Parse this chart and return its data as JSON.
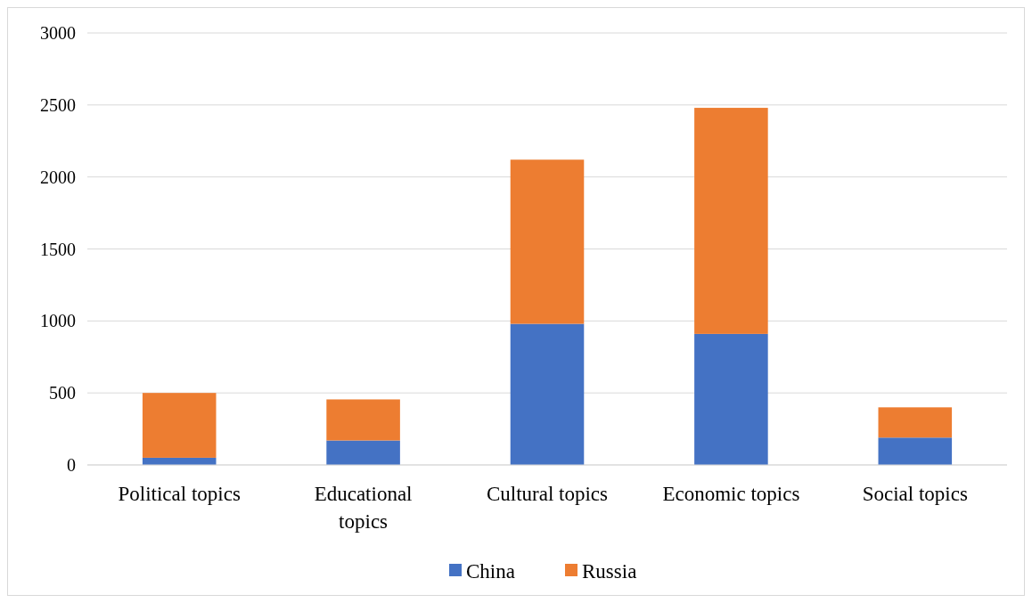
{
  "chart_data": {
    "type": "bar",
    "stacked": true,
    "categories": [
      "Political topics",
      "Educational topics",
      "Cultural topics",
      "Economic topics",
      "Social topics"
    ],
    "series": [
      {
        "name": "China",
        "color": "#4472c4",
        "values": [
          50,
          170,
          980,
          910,
          190
        ]
      },
      {
        "name": "Russia",
        "color": "#ed7d31",
        "values": [
          450,
          285,
          1140,
          1570,
          210
        ]
      }
    ],
    "ylim": [
      0,
      3000
    ],
    "yticks": [
      0,
      500,
      1000,
      1500,
      2000,
      2500,
      3000
    ],
    "grid": "y",
    "legend": "bottom"
  }
}
